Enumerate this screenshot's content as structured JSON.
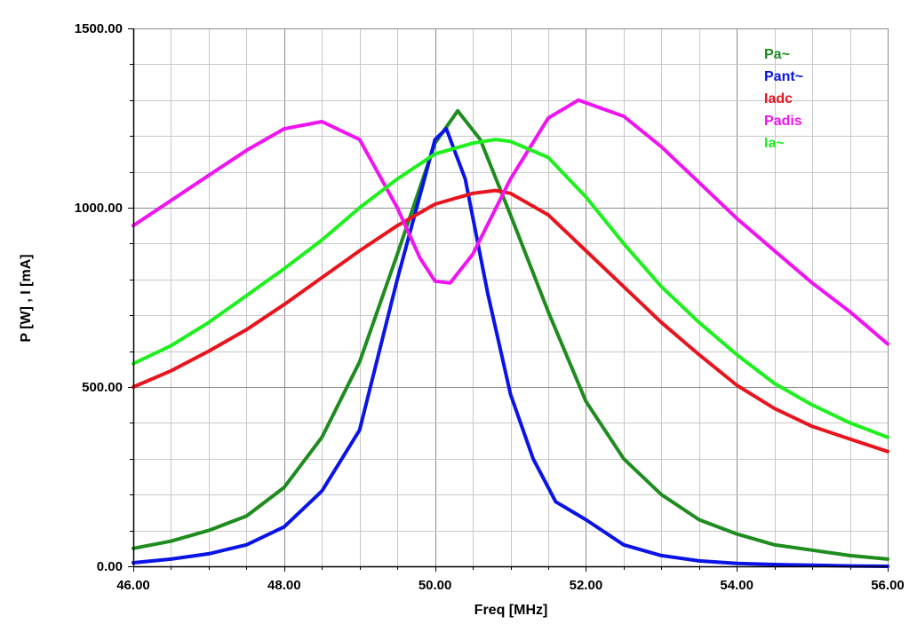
{
  "chart_data": {
    "type": "line",
    "title": "",
    "xlabel": "Freq [MHz]",
    "ylabel": "P [W] , I [mA]",
    "xlim": [
      46,
      56
    ],
    "ylim": [
      0,
      1500
    ],
    "x_ticks": [
      {
        "value": 46,
        "label": "46.00"
      },
      {
        "value": 48,
        "label": "48.00"
      },
      {
        "value": 50,
        "label": "50.00"
      },
      {
        "value": 52,
        "label": "52.00"
      },
      {
        "value": 54,
        "label": "54.00"
      },
      {
        "value": 56,
        "label": "56.00"
      }
    ],
    "y_ticks": [
      {
        "value": 0,
        "label": "0.00"
      },
      {
        "value": 500,
        "label": "500.00"
      },
      {
        "value": 1000,
        "label": "1000.00"
      },
      {
        "value": 1500,
        "label": "1500.00"
      }
    ],
    "x_grid_step": 0.5,
    "y_grid_step": 100,
    "grid": true,
    "legend_position": "top-right",
    "series": [
      {
        "name": "Pa~",
        "color": "#1e8c1e",
        "points": [
          [
            46.0,
            50
          ],
          [
            46.5,
            70
          ],
          [
            47.0,
            100
          ],
          [
            47.5,
            140
          ],
          [
            48.0,
            220
          ],
          [
            48.5,
            360
          ],
          [
            49.0,
            570
          ],
          [
            49.5,
            870
          ],
          [
            50.0,
            1180
          ],
          [
            50.3,
            1270
          ],
          [
            50.6,
            1190
          ],
          [
            51.0,
            980
          ],
          [
            51.5,
            710
          ],
          [
            52.0,
            460
          ],
          [
            52.5,
            300
          ],
          [
            53.0,
            200
          ],
          [
            53.5,
            130
          ],
          [
            54.0,
            90
          ],
          [
            54.5,
            60
          ],
          [
            55.0,
            45
          ],
          [
            55.5,
            30
          ],
          [
            56.0,
            20
          ]
        ]
      },
      {
        "name": "Pant~",
        "color": "#0a14e6",
        "points": [
          [
            46.0,
            10
          ],
          [
            46.5,
            20
          ],
          [
            47.0,
            35
          ],
          [
            47.5,
            60
          ],
          [
            48.0,
            110
          ],
          [
            48.5,
            210
          ],
          [
            49.0,
            380
          ],
          [
            49.5,
            800
          ],
          [
            50.0,
            1190
          ],
          [
            50.15,
            1220
          ],
          [
            50.4,
            1080
          ],
          [
            50.7,
            760
          ],
          [
            51.0,
            480
          ],
          [
            51.3,
            300
          ],
          [
            51.6,
            180
          ],
          [
            52.0,
            130
          ],
          [
            52.5,
            60
          ],
          [
            53.0,
            30
          ],
          [
            53.5,
            15
          ],
          [
            54.0,
            8
          ],
          [
            54.5,
            5
          ],
          [
            55.0,
            3
          ],
          [
            55.5,
            1
          ],
          [
            56.0,
            0
          ]
        ]
      },
      {
        "name": "Iadc",
        "color": "#e8141e",
        "points": [
          [
            46.0,
            500
          ],
          [
            46.5,
            545
          ],
          [
            47.0,
            600
          ],
          [
            47.5,
            660
          ],
          [
            48.0,
            730
          ],
          [
            48.5,
            805
          ],
          [
            49.0,
            880
          ],
          [
            49.5,
            950
          ],
          [
            50.0,
            1010
          ],
          [
            50.5,
            1040
          ],
          [
            50.8,
            1048
          ],
          [
            51.0,
            1040
          ],
          [
            51.5,
            980
          ],
          [
            52.0,
            880
          ],
          [
            52.5,
            780
          ],
          [
            53.0,
            680
          ],
          [
            53.5,
            590
          ],
          [
            54.0,
            505
          ],
          [
            54.5,
            440
          ],
          [
            55.0,
            390
          ],
          [
            55.5,
            355
          ],
          [
            56.0,
            320
          ]
        ]
      },
      {
        "name": "Padis",
        "color": "#f014f0",
        "points": [
          [
            46.0,
            950
          ],
          [
            46.5,
            1020
          ],
          [
            47.0,
            1090
          ],
          [
            47.5,
            1160
          ],
          [
            48.0,
            1220
          ],
          [
            48.5,
            1240
          ],
          [
            49.0,
            1190
          ],
          [
            49.5,
            1000
          ],
          [
            49.8,
            860
          ],
          [
            50.0,
            795
          ],
          [
            50.2,
            790
          ],
          [
            50.5,
            870
          ],
          [
            51.0,
            1080
          ],
          [
            51.5,
            1250
          ],
          [
            51.9,
            1300
          ],
          [
            52.5,
            1255
          ],
          [
            53.0,
            1170
          ],
          [
            53.5,
            1070
          ],
          [
            54.0,
            970
          ],
          [
            54.5,
            880
          ],
          [
            55.0,
            790
          ],
          [
            55.5,
            710
          ],
          [
            56.0,
            620
          ]
        ]
      },
      {
        "name": "Ia~",
        "color": "#1ef01e",
        "points": [
          [
            46.0,
            565
          ],
          [
            46.5,
            615
          ],
          [
            47.0,
            680
          ],
          [
            47.5,
            755
          ],
          [
            48.0,
            830
          ],
          [
            48.5,
            910
          ],
          [
            49.0,
            1000
          ],
          [
            49.5,
            1080
          ],
          [
            50.0,
            1150
          ],
          [
            50.5,
            1180
          ],
          [
            50.8,
            1190
          ],
          [
            51.0,
            1185
          ],
          [
            51.5,
            1140
          ],
          [
            52.0,
            1030
          ],
          [
            52.5,
            900
          ],
          [
            53.0,
            780
          ],
          [
            53.5,
            680
          ],
          [
            54.0,
            590
          ],
          [
            54.5,
            510
          ],
          [
            55.0,
            450
          ],
          [
            55.5,
            400
          ],
          [
            56.0,
            360
          ]
        ]
      }
    ]
  }
}
